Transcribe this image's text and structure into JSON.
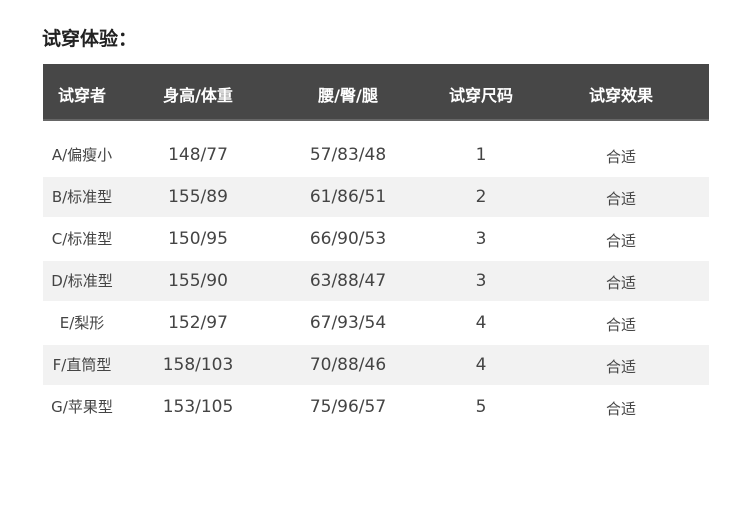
{
  "title": "试穿体验：",
  "table": {
    "headers": [
      "试穿者",
      "身高/体重",
      "腰/臀/腿",
      "试穿尺码",
      "试穿效果"
    ],
    "rows": [
      [
        "A/偏瘦小",
        "148/77",
        "57/83/48",
        "1",
        "合适"
      ],
      [
        "B/标准型",
        "155/89",
        "61/86/51",
        "2",
        "合适"
      ],
      [
        "C/标准型",
        "150/95",
        "66/90/53",
        "3",
        "合适"
      ],
      [
        "D/标准型",
        "155/90",
        "63/88/47",
        "3",
        "合适"
      ],
      [
        "E/梨形",
        "152/97",
        "67/93/54",
        "4",
        "合适"
      ],
      [
        "F/直筒型",
        "158/103",
        "70/88/46",
        "4",
        "合适"
      ],
      [
        "G/苹果型",
        "153/105",
        "75/96/57",
        "5",
        "合适"
      ]
    ]
  },
  "colors": {
    "header_bg": "#474747",
    "stripe": "#f2f2f2"
  }
}
